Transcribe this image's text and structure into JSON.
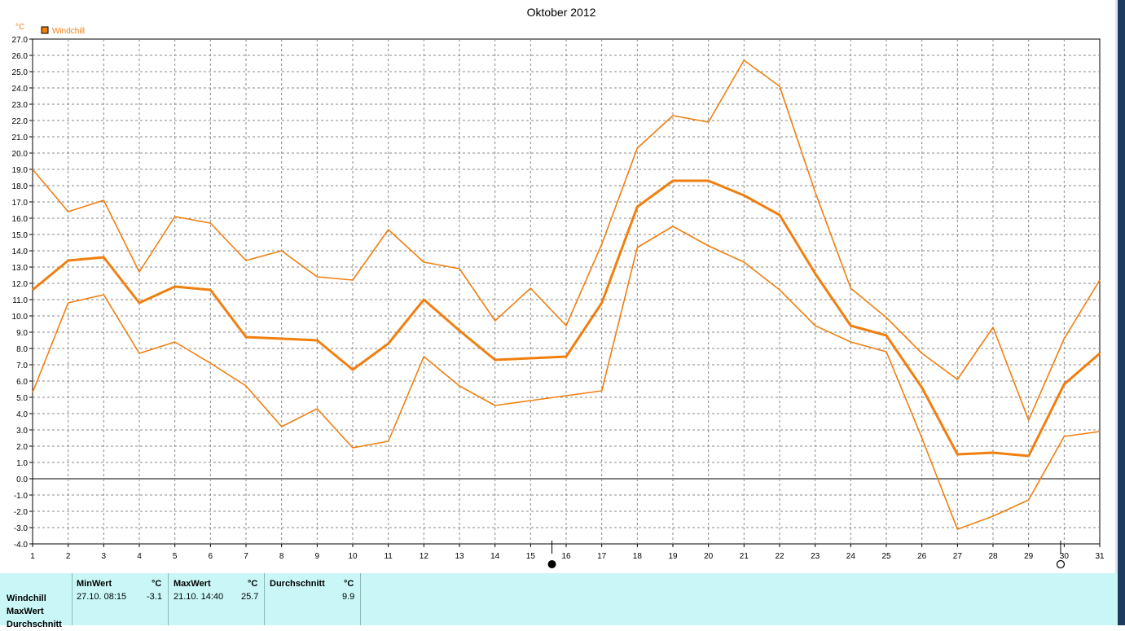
{
  "chart_data": {
    "type": "line",
    "title": "Oktober 2012",
    "y_unit": "°C",
    "ylim": [
      -4,
      27
    ],
    "y_step": 1,
    "x": [
      1,
      2,
      3,
      4,
      5,
      6,
      7,
      8,
      9,
      10,
      11,
      12,
      13,
      14,
      15,
      16,
      17,
      18,
      19,
      20,
      21,
      22,
      23,
      24,
      25,
      26,
      27,
      28,
      29,
      30,
      31
    ],
    "xlim": [
      1,
      31
    ],
    "grid": true,
    "legend": "top-left",
    "legend_entries": [
      "Windchill"
    ],
    "color": "#f07f10",
    "series": [
      {
        "role": "max",
        "values": [
          19.0,
          16.4,
          17.1,
          12.7,
          16.1,
          15.7,
          13.4,
          14.0,
          12.4,
          12.2,
          15.3,
          13.3,
          12.9,
          9.7,
          11.7,
          9.4,
          14.4,
          20.3,
          22.3,
          21.9,
          25.7,
          24.1,
          17.6,
          11.7,
          9.9,
          7.7,
          6.1,
          9.3,
          3.6,
          8.6,
          12.2
        ]
      },
      {
        "role": "avg",
        "values": [
          11.6,
          13.4,
          13.6,
          10.8,
          11.8,
          11.6,
          8.7,
          8.6,
          8.5,
          6.7,
          8.3,
          11.0,
          9.1,
          7.3,
          7.4,
          7.5,
          10.8,
          16.7,
          18.3,
          18.3,
          17.4,
          16.2,
          12.6,
          9.4,
          8.8,
          5.6,
          1.5,
          1.6,
          1.4,
          5.8,
          7.7
        ]
      },
      {
        "role": "min",
        "values": [
          5.3,
          10.8,
          11.3,
          7.7,
          8.4,
          7.1,
          5.7,
          3.2,
          4.3,
          1.9,
          2.3,
          7.5,
          5.7,
          4.5,
          4.8,
          5.1,
          5.4,
          14.2,
          15.5,
          14.3,
          13.3,
          11.6,
          9.4,
          8.4,
          7.8,
          2.5,
          -3.1,
          -2.3,
          -1.3,
          2.6,
          2.9
        ]
      }
    ],
    "moon_markers": [
      {
        "x": 15.6,
        "phase": "new"
      },
      {
        "x": 29.9,
        "phase": "full"
      }
    ]
  },
  "stats": {
    "row_labels": [
      "Windchill",
      "MaxWert",
      "Durchschnitt"
    ],
    "min_header": "MinWert",
    "min_unit": "°C",
    "min_date": "27.10.  08:15",
    "min_value": "-3.1",
    "max_header": "MaxWert",
    "max_unit": "°C",
    "max_date": "21.10.  14:40",
    "max_value": "25.7",
    "avg_header": "Durchschnitt",
    "avg_unit": "°C",
    "avg_value": "9.9"
  }
}
